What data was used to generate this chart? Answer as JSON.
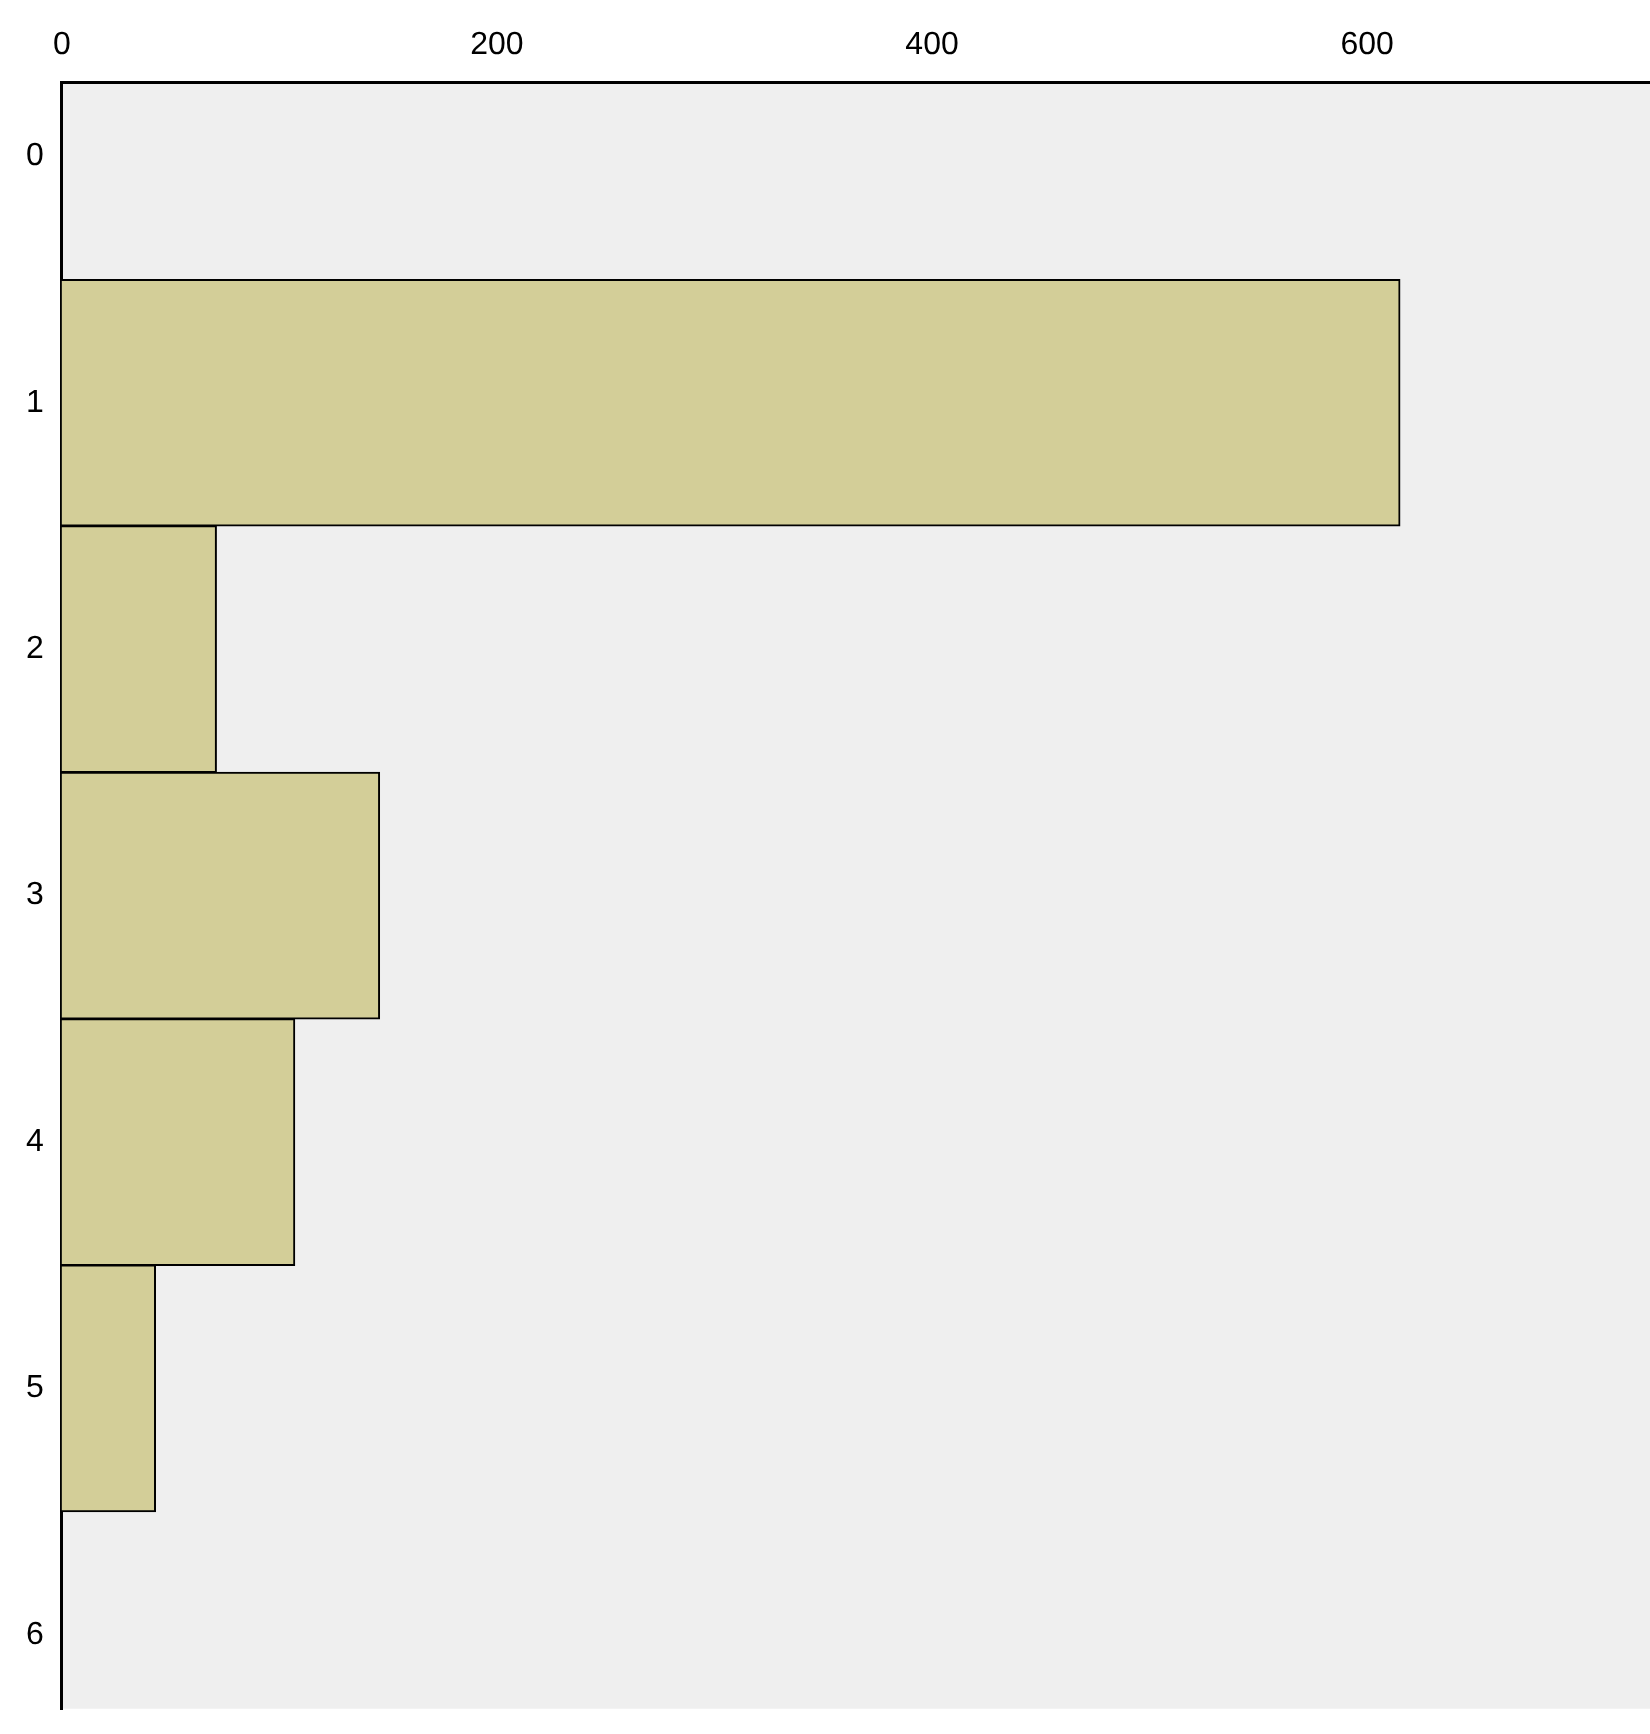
{
  "chart_data": {
    "type": "histogram",
    "orientation": "horizontal",
    "bins": [
      0.5,
      1.5,
      2.5,
      3.5,
      4.5,
      5.5
    ],
    "values": [
      615,
      71,
      146,
      107,
      43
    ],
    "color": "#d3ce98",
    "xlim": [
      0,
      730
    ],
    "xticks": [
      0,
      200,
      400,
      600
    ],
    "ylim": [
      6.3,
      -0.3
    ],
    "yticks": [
      0,
      1,
      2,
      3,
      4,
      5,
      6
    ],
    "grid": false,
    "legend": false
  }
}
